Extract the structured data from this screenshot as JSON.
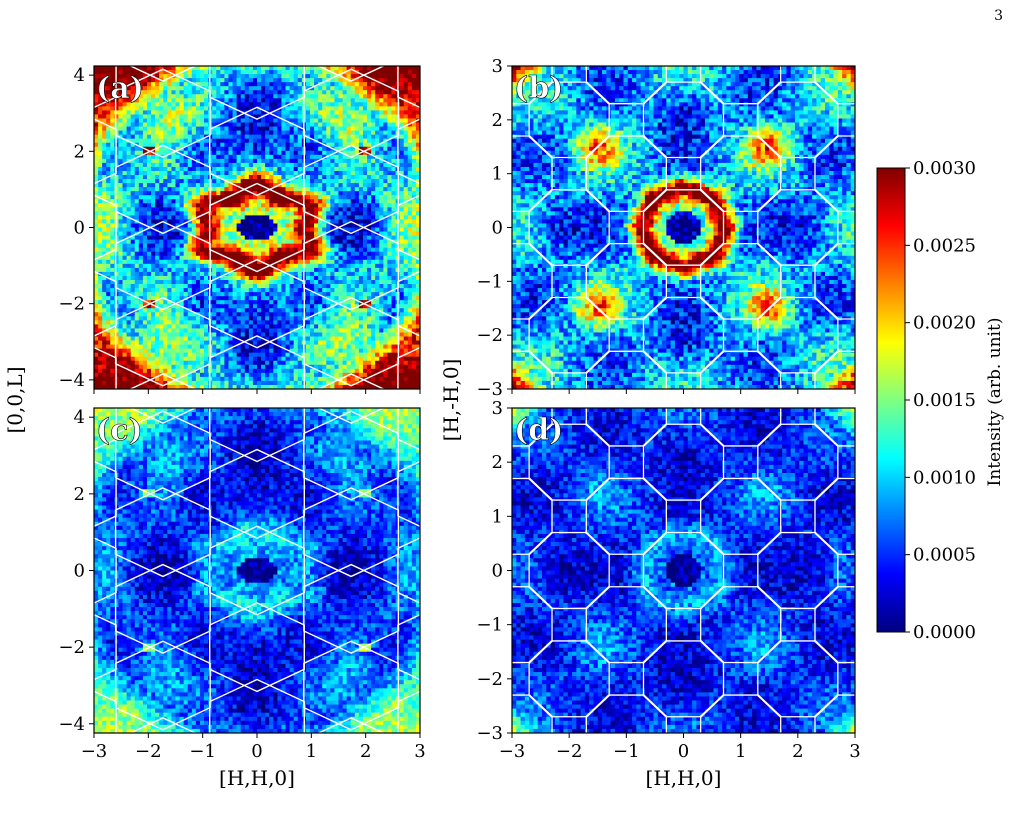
{
  "page_number": "3",
  "colormap": [
    "#00007f",
    "#0000ff",
    "#0080ff",
    "#00ffff",
    "#80ff80",
    "#ffff00",
    "#ff8000",
    "#ff0000",
    "#800000"
  ],
  "chart_data": [
    {
      "type": "heatmap",
      "panel_label": "(a)",
      "pattern": "hexagonal",
      "xlim": [
        -3,
        3
      ],
      "ylim": [
        -4.24,
        4.24
      ],
      "xticks": [
        -3,
        -2,
        -1,
        0,
        1,
        2,
        3
      ],
      "yticks": [
        -4,
        -2,
        0,
        2,
        4
      ],
      "xlabel": "",
      "ylabel": "",
      "value_range": [
        0,
        0.003
      ]
    },
    {
      "type": "heatmap",
      "panel_label": "(b)",
      "pattern": "octagonal",
      "xlim": [
        -3,
        3
      ],
      "ylim": [
        -3,
        3
      ],
      "xticks": [
        -3,
        -2,
        -1,
        0,
        1,
        2,
        3
      ],
      "yticks": [
        -3,
        -2,
        -1,
        0,
        1,
        2,
        3
      ],
      "xlabel": "",
      "ylabel": "",
      "value_range": [
        0,
        0.003
      ]
    },
    {
      "type": "heatmap",
      "panel_label": "(c)",
      "pattern": "hexagonal",
      "xlim": [
        -3,
        3
      ],
      "ylim": [
        -4.24,
        4.24
      ],
      "xticks": [
        -3,
        -2,
        -1,
        0,
        1,
        2,
        3
      ],
      "yticks": [
        -4,
        -2,
        0,
        2,
        4
      ],
      "xlabel": "[H,H,0]",
      "ylabel": "",
      "value_range": [
        0,
        0.0013
      ]
    },
    {
      "type": "heatmap",
      "panel_label": "(d)",
      "pattern": "octagonal",
      "xlim": [
        -3,
        3
      ],
      "ylim": [
        -3,
        3
      ],
      "xticks": [
        -3,
        -2,
        -1,
        0,
        1,
        2,
        3
      ],
      "yticks": [
        -3,
        -2,
        -1,
        0,
        1,
        2,
        3
      ],
      "xlabel": "[H,H,0]",
      "ylabel": "",
      "value_range": [
        0,
        0.0013
      ]
    }
  ],
  "shared_labels": {
    "left_ylabel": "[0,0,L]",
    "right_ylabel": "[H,-H,0]"
  },
  "colorbar": {
    "label": "Intensity (arb. unit)",
    "min": 0.0,
    "max": 0.003,
    "ticks": [
      "0.0000",
      "0.0005",
      "0.0010",
      "0.0015",
      "0.0020",
      "0.0025",
      "0.0030"
    ]
  }
}
